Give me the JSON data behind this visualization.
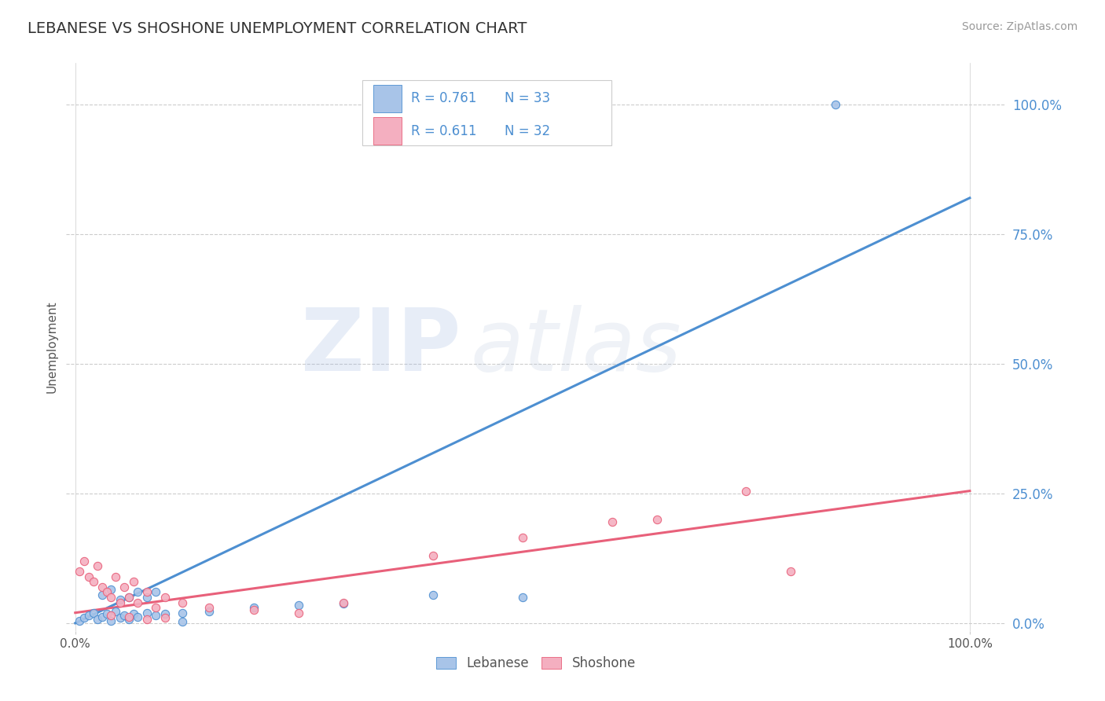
{
  "title": "LEBANESE VS SHOSHONE UNEMPLOYMENT CORRELATION CHART",
  "source": "Source: ZipAtlas.com",
  "ylabel": "Unemployment",
  "y_tick_labels": [
    "0.0%",
    "25.0%",
    "50.0%",
    "75.0%",
    "100.0%"
  ],
  "y_tick_values": [
    0.0,
    0.25,
    0.5,
    0.75,
    1.0
  ],
  "x_tick_values": [
    0.0,
    1.0
  ],
  "x_tick_labels": [
    "0.0%",
    "100.0%"
  ],
  "blue_scatter_color": "#a8c4e8",
  "blue_edge_color": "#4d8fd1",
  "pink_scatter_color": "#f4afc0",
  "pink_edge_color": "#e8607a",
  "blue_line_color": "#4d8fd1",
  "pink_line_color": "#e8607a",
  "watermark_zip_color": "#a0b8e0",
  "watermark_atlas_color": "#b0c0d8",
  "grid_color": "#cccccc",
  "background_color": "#ffffff",
  "title_color": "#333333",
  "source_color": "#999999",
  "ylabel_color": "#555555",
  "ytick_color": "#4d8fd1",
  "xtick_color": "#555555",
  "legend_text_color": "#4d8fd1",
  "legend_label_color": "#555555",
  "lebanese_scatter": [
    [
      0.005,
      0.005
    ],
    [
      0.01,
      0.01
    ],
    [
      0.015,
      0.015
    ],
    [
      0.02,
      0.02
    ],
    [
      0.025,
      0.008
    ],
    [
      0.03,
      0.012
    ],
    [
      0.035,
      0.018
    ],
    [
      0.04,
      0.005
    ],
    [
      0.045,
      0.022
    ],
    [
      0.05,
      0.01
    ],
    [
      0.055,
      0.015
    ],
    [
      0.06,
      0.008
    ],
    [
      0.065,
      0.018
    ],
    [
      0.07,
      0.012
    ],
    [
      0.08,
      0.02
    ],
    [
      0.09,
      0.015
    ],
    [
      0.1,
      0.018
    ],
    [
      0.12,
      0.02
    ],
    [
      0.03,
      0.055
    ],
    [
      0.04,
      0.065
    ],
    [
      0.05,
      0.045
    ],
    [
      0.06,
      0.05
    ],
    [
      0.07,
      0.06
    ],
    [
      0.08,
      0.05
    ],
    [
      0.09,
      0.06
    ],
    [
      0.15,
      0.022
    ],
    [
      0.2,
      0.03
    ],
    [
      0.25,
      0.035
    ],
    [
      0.3,
      0.038
    ],
    [
      0.4,
      0.055
    ],
    [
      0.5,
      0.05
    ],
    [
      0.12,
      0.003
    ],
    [
      0.85,
      1.0
    ]
  ],
  "shoshone_scatter": [
    [
      0.005,
      0.1
    ],
    [
      0.01,
      0.12
    ],
    [
      0.015,
      0.09
    ],
    [
      0.02,
      0.08
    ],
    [
      0.025,
      0.11
    ],
    [
      0.03,
      0.07
    ],
    [
      0.035,
      0.06
    ],
    [
      0.04,
      0.05
    ],
    [
      0.045,
      0.09
    ],
    [
      0.05,
      0.04
    ],
    [
      0.055,
      0.07
    ],
    [
      0.06,
      0.05
    ],
    [
      0.065,
      0.08
    ],
    [
      0.07,
      0.04
    ],
    [
      0.08,
      0.06
    ],
    [
      0.09,
      0.03
    ],
    [
      0.1,
      0.05
    ],
    [
      0.12,
      0.04
    ],
    [
      0.04,
      0.015
    ],
    [
      0.06,
      0.012
    ],
    [
      0.08,
      0.008
    ],
    [
      0.1,
      0.01
    ],
    [
      0.15,
      0.03
    ],
    [
      0.2,
      0.025
    ],
    [
      0.25,
      0.02
    ],
    [
      0.3,
      0.04
    ],
    [
      0.4,
      0.13
    ],
    [
      0.5,
      0.165
    ],
    [
      0.6,
      0.195
    ],
    [
      0.65,
      0.2
    ],
    [
      0.75,
      0.255
    ],
    [
      0.8,
      0.1
    ]
  ],
  "blue_line_x": [
    0.0,
    1.0
  ],
  "blue_line_y": [
    0.0,
    0.82
  ],
  "pink_line_x": [
    0.0,
    1.0
  ],
  "pink_line_y": [
    0.02,
    0.255
  ],
  "xlim": [
    -0.01,
    1.04
  ],
  "ylim": [
    -0.015,
    1.08
  ],
  "dot_size": 55,
  "legend_R1": "R = 0.761",
  "legend_N1": "N = 33",
  "legend_R2": "R = 0.611",
  "legend_N2": "N = 32",
  "legend_label1": "Lebanese",
  "legend_label2": "Shoshone"
}
